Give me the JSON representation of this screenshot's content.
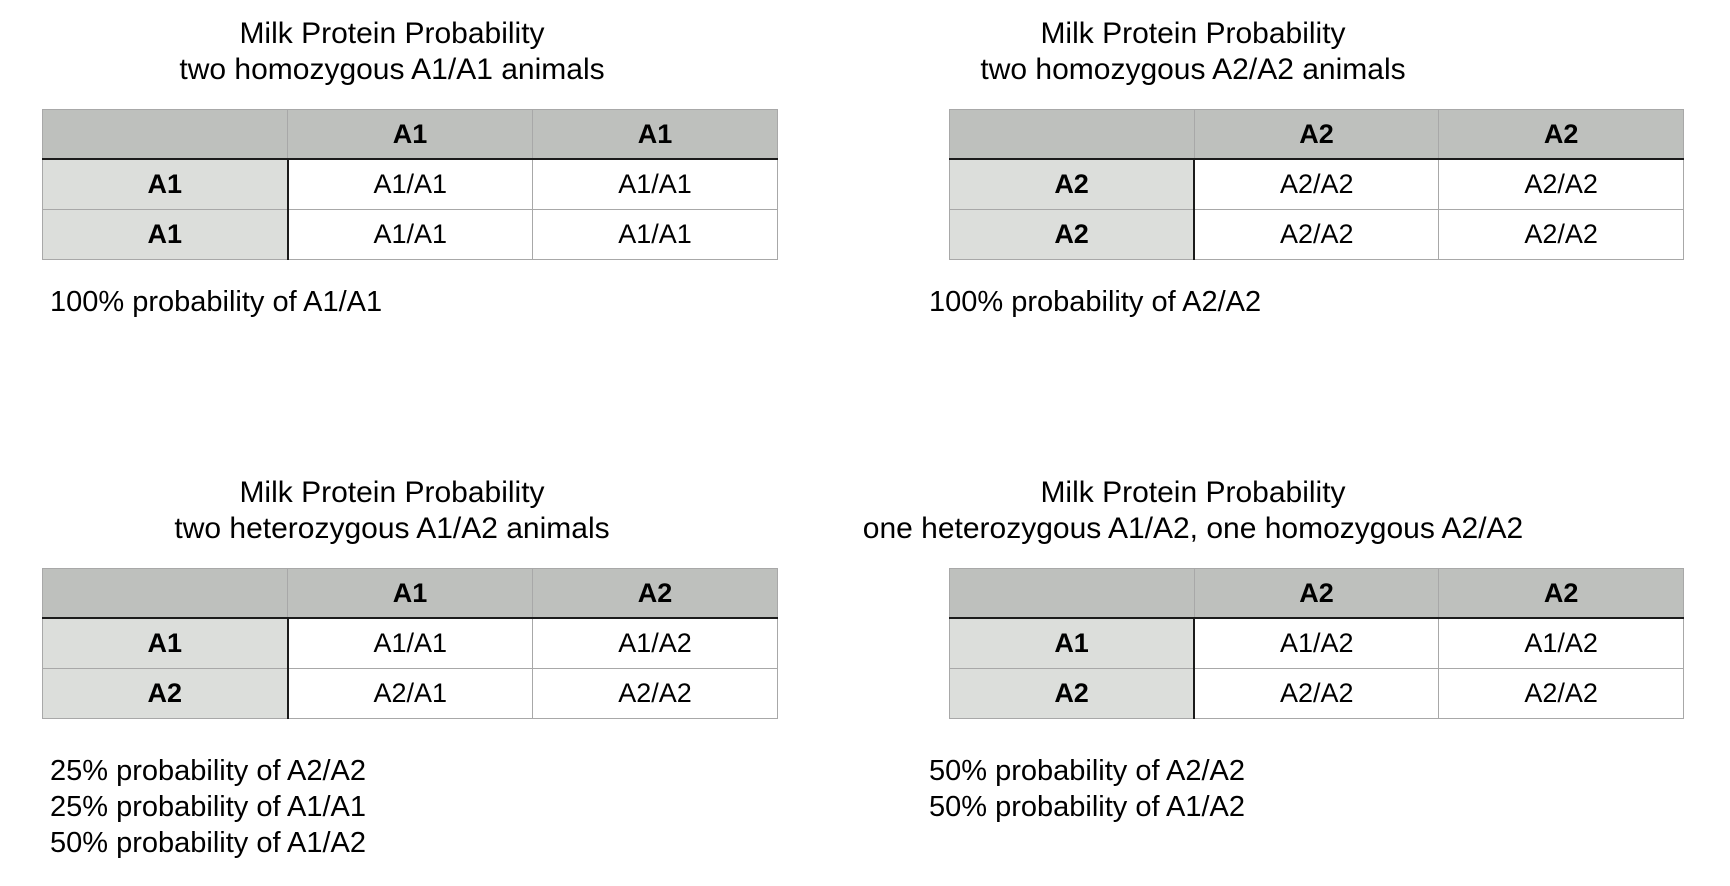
{
  "colors": {
    "header_bg": "#bec0bd",
    "row_header_bg": "#dcdedb",
    "border_light": "#a8a8a8",
    "border_dark": "#1b1b1b",
    "text": "#000000",
    "background": "#ffffff"
  },
  "quadrants": [
    {
      "title": {
        "line1": "Milk Protein Probability",
        "line2": "two homozygous A1/A1 animals"
      },
      "table": {
        "col_headers": [
          "A1",
          "A1"
        ],
        "rows": [
          {
            "header": "A1",
            "cells": [
              "A1/A1",
              "A1/A1"
            ]
          },
          {
            "header": "A1",
            "cells": [
              "A1/A1",
              "A1/A1"
            ]
          }
        ]
      },
      "captions": [
        "100% probability of A1/A1"
      ]
    },
    {
      "title": {
        "line1": "Milk Protein Probability",
        "line2": "two homozygous A2/A2 animals"
      },
      "table": {
        "col_headers": [
          "A2",
          "A2"
        ],
        "rows": [
          {
            "header": "A2",
            "cells": [
              "A2/A2",
              "A2/A2"
            ]
          },
          {
            "header": "A2",
            "cells": [
              "A2/A2",
              "A2/A2"
            ]
          }
        ]
      },
      "captions": [
        "100% probability of A2/A2"
      ]
    },
    {
      "title": {
        "line1": "Milk Protein Probability",
        "line2": "two heterozygous A1/A2 animals"
      },
      "table": {
        "col_headers": [
          "A1",
          "A2"
        ],
        "rows": [
          {
            "header": "A1",
            "cells": [
              "A1/A1",
              "A1/A2"
            ]
          },
          {
            "header": "A2",
            "cells": [
              "A2/A1",
              "A2/A2"
            ]
          }
        ]
      },
      "captions": [
        "25% probability of A2/A2",
        "25% probability of A1/A1",
        "50% probability of A1/A2"
      ]
    },
    {
      "title": {
        "line1": "Milk Protein Probability",
        "line2": "one heterozygous A1/A2, one homozygous A2/A2"
      },
      "table": {
        "col_headers": [
          "A2",
          "A2"
        ],
        "rows": [
          {
            "header": "A1",
            "cells": [
              "A1/A2",
              "A1/A2"
            ]
          },
          {
            "header": "A2",
            "cells": [
              "A2/A2",
              "A2/A2"
            ]
          }
        ]
      },
      "captions": [
        "50% probability of A2/A2",
        "50% probability of A1/A2"
      ]
    }
  ]
}
